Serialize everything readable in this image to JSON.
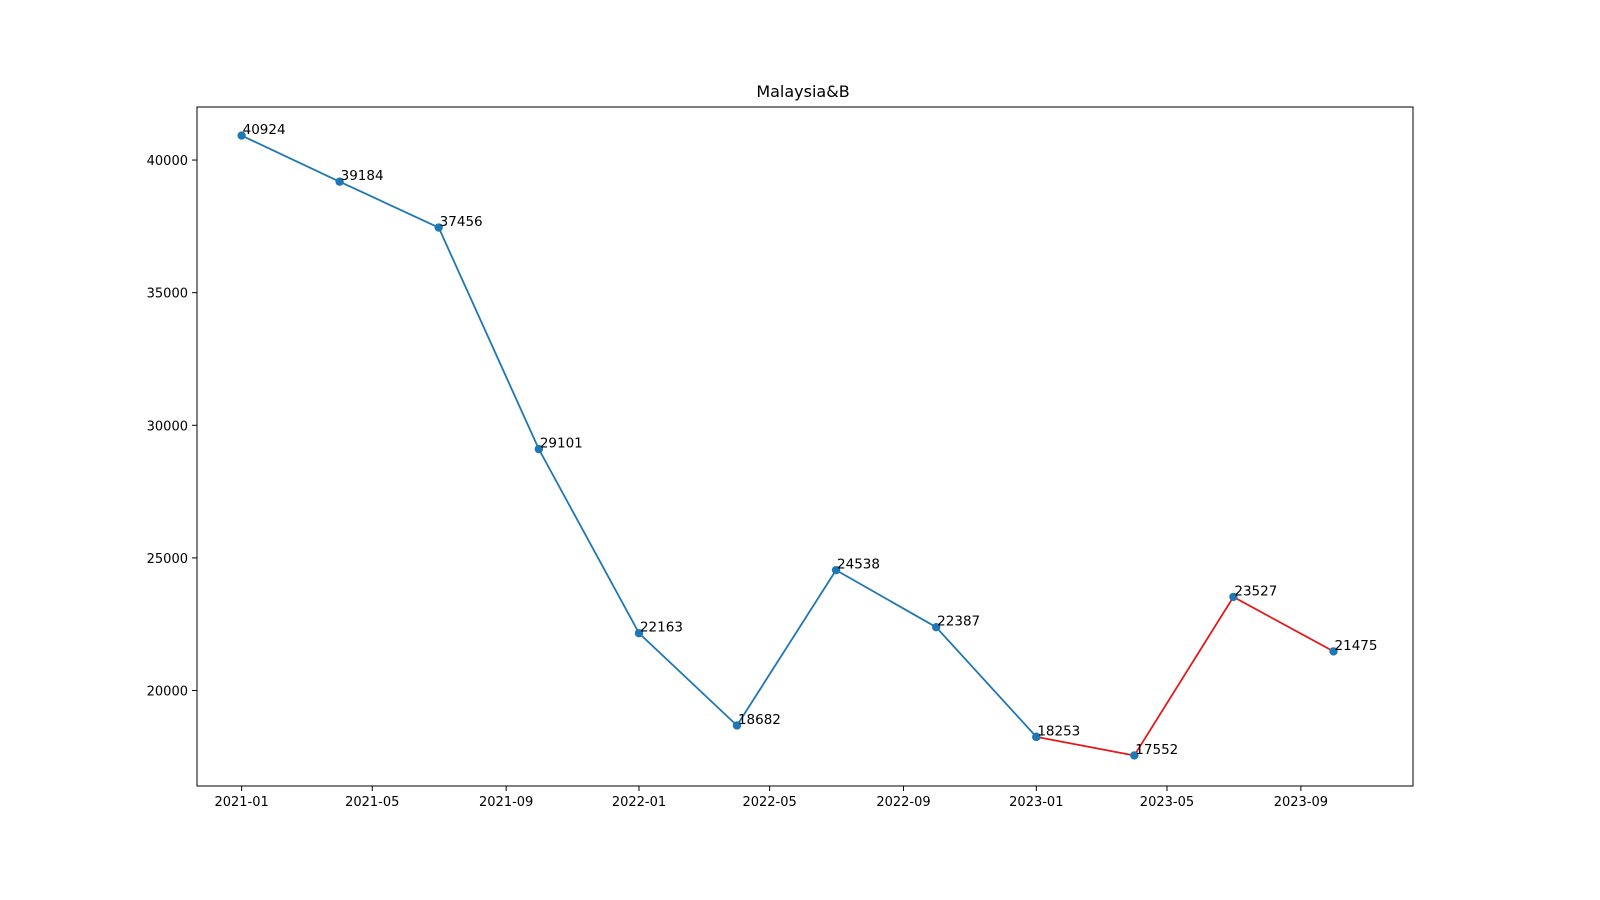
{
  "chart_data": {
    "type": "line",
    "title": "Malaysia&B",
    "xlabel": "",
    "ylabel": "",
    "grid": false,
    "x_axis_type": "date",
    "xlim": [
      "2020-11-21",
      "2023-12-13"
    ],
    "ylim": [
      16400,
      42000
    ],
    "x_ticks": [
      {
        "date": "2021-01-01",
        "label": "2021-01"
      },
      {
        "date": "2021-05-01",
        "label": "2021-05"
      },
      {
        "date": "2021-09-01",
        "label": "2021-09"
      },
      {
        "date": "2022-01-01",
        "label": "2022-01"
      },
      {
        "date": "2022-05-01",
        "label": "2022-05"
      },
      {
        "date": "2022-09-01",
        "label": "2022-09"
      },
      {
        "date": "2023-01-01",
        "label": "2023-01"
      },
      {
        "date": "2023-05-01",
        "label": "2023-05"
      },
      {
        "date": "2023-09-01",
        "label": "2023-09"
      }
    ],
    "y_ticks": [
      {
        "value": 20000,
        "label": "20000"
      },
      {
        "value": 25000,
        "label": "25000"
      },
      {
        "value": 30000,
        "label": "30000"
      },
      {
        "value": 35000,
        "label": "35000"
      },
      {
        "value": 40000,
        "label": "40000"
      }
    ],
    "series": [
      {
        "color": "#1f77b4",
        "marker_color": "#1f77b4",
        "points": [
          {
            "x": "2021-01-01",
            "y": 40924,
            "label": "40924"
          },
          {
            "x": "2021-04-01",
            "y": 39184,
            "label": "39184"
          },
          {
            "x": "2021-07-01",
            "y": 37456,
            "label": "37456"
          },
          {
            "x": "2021-10-01",
            "y": 29101,
            "label": "29101"
          },
          {
            "x": "2022-01-01",
            "y": 22163,
            "label": "22163"
          },
          {
            "x": "2022-04-01",
            "y": 18682,
            "label": "18682"
          },
          {
            "x": "2022-07-01",
            "y": 24538,
            "label": "24538"
          },
          {
            "x": "2022-10-01",
            "y": 22387,
            "label": "22387"
          },
          {
            "x": "2023-01-01",
            "y": 18253,
            "label": "18253"
          }
        ]
      },
      {
        "color": "#e41a1c",
        "marker_color": "#1f77b4",
        "points": [
          {
            "x": "2023-01-01",
            "y": 18253,
            "label": ""
          },
          {
            "x": "2023-04-01",
            "y": 17552,
            "label": "17552"
          },
          {
            "x": "2023-07-01",
            "y": 23527,
            "label": "23527"
          },
          {
            "x": "2023-10-01",
            "y": 21475,
            "label": "21475"
          }
        ]
      }
    ]
  }
}
